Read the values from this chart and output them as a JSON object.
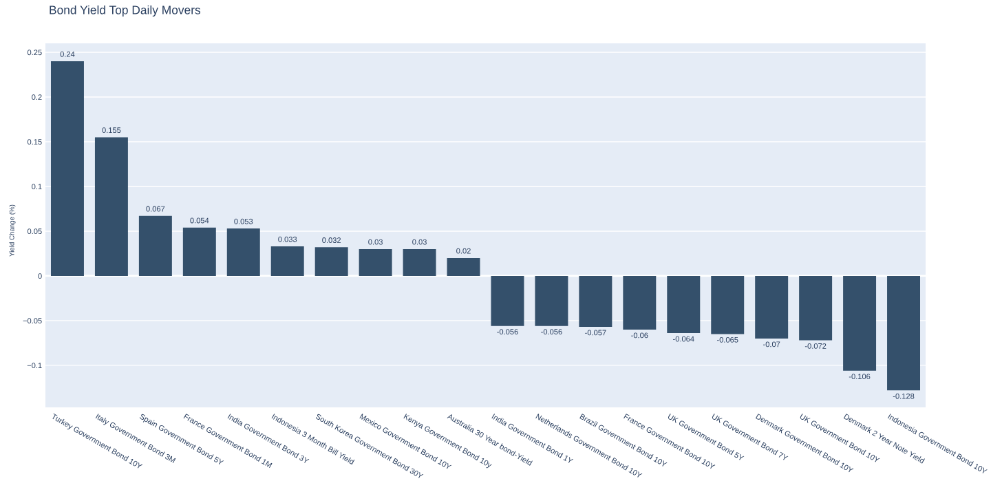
{
  "chart_data": {
    "type": "bar",
    "title": "Bond Yield Top Daily Movers",
    "ylabel": "Yield Change (%)",
    "categories": [
      "Turkey Government Bond 10Y",
      "Italy Government Bond 3M",
      "Spain Government Bond 5Y",
      "France Government Bond 1M",
      "India Government Bond 3Y",
      "Indonesia 3 Month Bill Yield",
      "South Korea Government Bond 30Y",
      "Mexico Government Bond 10Y",
      "Kenya Government Bond 10y",
      "Australia 30 Year bond-Yield",
      "India Government Bond 1Y",
      "Netherlands Government Bond 10Y",
      "Brazil Government Bond 10Y",
      "France Government Bond 10Y",
      "UK Government Bond 5Y",
      "UK Government Bond 7Y",
      "Denmark Government Bond 10Y",
      "UK Government Bond 10Y",
      "Denmark 2 Year Note Yield",
      "Indonesia Government Bond 10Y"
    ],
    "values": [
      0.24,
      0.155,
      0.067,
      0.054,
      0.053,
      0.033,
      0.032,
      0.03,
      0.03,
      0.02,
      -0.056,
      -0.056,
      -0.057,
      -0.06,
      -0.064,
      -0.065,
      -0.07,
      -0.072,
      -0.106,
      -0.128
    ],
    "color": "#34506b",
    "data_labels": true,
    "ylim": [
      -0.147,
      0.26
    ],
    "yticks": [
      {
        "value": -0.1,
        "label": "−0.1"
      },
      {
        "value": -0.05,
        "label": "−0.05"
      },
      0,
      0.05,
      0.1,
      0.15,
      0.2,
      0.25
    ],
    "grid": "y",
    "legend": false
  }
}
